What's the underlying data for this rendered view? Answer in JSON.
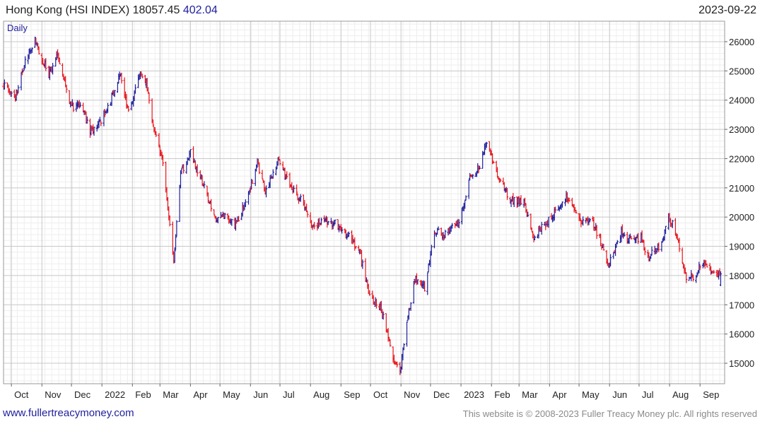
{
  "header": {
    "title_prefix": "Hong Kong (HSI INDEX) 18057.45",
    "change": "402.04",
    "date": "2023-09-22"
  },
  "footer": {
    "link": "www.fullertreacymoney.com",
    "copyright": "This website is © 2008-2023 Fuller Treacy Money plc. All rights reserved"
  },
  "colors": {
    "up": "#1f1f9e",
    "down": "#e8141c",
    "grid": "#dedede",
    "frame": "#999999"
  },
  "chart_data": {
    "type": "ohlc",
    "frequency_label": "Daily",
    "title": "Hong Kong (HSI INDEX) 18057.45 402.04",
    "y_ticks": [
      15000,
      16000,
      17000,
      18000,
      19000,
      20000,
      21000,
      22000,
      23000,
      24000,
      25000,
      26000
    ],
    "ylim": [
      14300,
      26700
    ],
    "x_ticks": [
      {
        "label": "Oct",
        "date": "2021-10"
      },
      {
        "label": "Nov",
        "date": "2021-11"
      },
      {
        "label": "Dec",
        "date": "2021-12"
      },
      {
        "label": "2022",
        "date": "2022-01"
      },
      {
        "label": "Feb",
        "date": "2022-02"
      },
      {
        "label": "Mar",
        "date": "2022-03"
      },
      {
        "label": "Apr",
        "date": "2022-04"
      },
      {
        "label": "May",
        "date": "2022-05"
      },
      {
        "label": "Jun",
        "date": "2022-06"
      },
      {
        "label": "Jul",
        "date": "2022-07"
      },
      {
        "label": "Aug",
        "date": "2022-08"
      },
      {
        "label": "Sep",
        "date": "2022-09"
      },
      {
        "label": "Oct",
        "date": "2022-10"
      },
      {
        "label": "Nov",
        "date": "2022-11"
      },
      {
        "label": "Dec",
        "date": "2022-12"
      },
      {
        "label": "2023",
        "date": "2023-01"
      },
      {
        "label": "Feb",
        "date": "2023-02"
      },
      {
        "label": "Mar",
        "date": "2023-03"
      },
      {
        "label": "Apr",
        "date": "2023-04"
      },
      {
        "label": "May",
        "date": "2023-05"
      },
      {
        "label": "Jun",
        "date": "2023-06"
      },
      {
        "label": "Jul",
        "date": "2023-07"
      },
      {
        "label": "Aug",
        "date": "2023-08"
      },
      {
        "label": "Sep",
        "date": "2023-09"
      }
    ],
    "grid": true,
    "close_path": [
      {
        "date": "2021-09-23",
        "close": 24500
      },
      {
        "date": "2021-10-05",
        "close": 24100
      },
      {
        "date": "2021-10-15",
        "close": 25300
      },
      {
        "date": "2021-10-25",
        "close": 26100
      },
      {
        "date": "2021-11-01",
        "close": 25400
      },
      {
        "date": "2021-11-08",
        "close": 24900
      },
      {
        "date": "2021-11-17",
        "close": 25650
      },
      {
        "date": "2021-11-26",
        "close": 24300
      },
      {
        "date": "2021-12-03",
        "close": 23700
      },
      {
        "date": "2021-12-10",
        "close": 23900
      },
      {
        "date": "2021-12-20",
        "close": 22900
      },
      {
        "date": "2021-12-31",
        "close": 23300
      },
      {
        "date": "2022-01-10",
        "close": 24000
      },
      {
        "date": "2022-01-20",
        "close": 24950
      },
      {
        "date": "2022-01-28",
        "close": 23550
      },
      {
        "date": "2022-02-08",
        "close": 24900
      },
      {
        "date": "2022-02-15",
        "close": 24650
      },
      {
        "date": "2022-02-24",
        "close": 22800
      },
      {
        "date": "2022-03-04",
        "close": 21900
      },
      {
        "date": "2022-03-15",
        "close": 18400
      },
      {
        "date": "2022-03-22",
        "close": 21500
      },
      {
        "date": "2022-04-01",
        "close": 22200
      },
      {
        "date": "2022-04-12",
        "close": 21300
      },
      {
        "date": "2022-04-26",
        "close": 19900
      },
      {
        "date": "2022-05-06",
        "close": 20000
      },
      {
        "date": "2022-05-16",
        "close": 19700
      },
      {
        "date": "2022-05-27",
        "close": 20500
      },
      {
        "date": "2022-06-08",
        "close": 21800
      },
      {
        "date": "2022-06-16",
        "close": 20900
      },
      {
        "date": "2022-06-30",
        "close": 22000
      },
      {
        "date": "2022-07-11",
        "close": 21000
      },
      {
        "date": "2022-07-22",
        "close": 20600
      },
      {
        "date": "2022-08-03",
        "close": 19750
      },
      {
        "date": "2022-08-15",
        "close": 19800
      },
      {
        "date": "2022-08-26",
        "close": 19800
      },
      {
        "date": "2022-09-09",
        "close": 19350
      },
      {
        "date": "2022-09-20",
        "close": 18800
      },
      {
        "date": "2022-09-30",
        "close": 17300
      },
      {
        "date": "2022-10-12",
        "close": 16850
      },
      {
        "date": "2022-10-24",
        "close": 15200
      },
      {
        "date": "2022-10-31",
        "close": 14700
      },
      {
        "date": "2022-11-08",
        "close": 16600
      },
      {
        "date": "2022-11-15",
        "close": 17900
      },
      {
        "date": "2022-11-25",
        "close": 17600
      },
      {
        "date": "2022-12-05",
        "close": 19500
      },
      {
        "date": "2022-12-15",
        "close": 19400
      },
      {
        "date": "2022-12-30",
        "close": 19800
      },
      {
        "date": "2023-01-10",
        "close": 21300
      },
      {
        "date": "2023-01-20",
        "close": 21700
      },
      {
        "date": "2023-01-27",
        "close": 22600
      },
      {
        "date": "2023-02-08",
        "close": 21300
      },
      {
        "date": "2023-02-20",
        "close": 20600
      },
      {
        "date": "2023-03-06",
        "close": 20500
      },
      {
        "date": "2023-03-15",
        "close": 19300
      },
      {
        "date": "2023-03-28",
        "close": 19800
      },
      {
        "date": "2023-04-10",
        "close": 20300
      },
      {
        "date": "2023-04-18",
        "close": 20700
      },
      {
        "date": "2023-05-02",
        "close": 19900
      },
      {
        "date": "2023-05-15",
        "close": 19800
      },
      {
        "date": "2023-05-24",
        "close": 19100
      },
      {
        "date": "2023-05-31",
        "close": 18300
      },
      {
        "date": "2023-06-13",
        "close": 19500
      },
      {
        "date": "2023-06-20",
        "close": 19200
      },
      {
        "date": "2023-07-03",
        "close": 19300
      },
      {
        "date": "2023-07-10",
        "close": 18600
      },
      {
        "date": "2023-07-24",
        "close": 19100
      },
      {
        "date": "2023-07-31",
        "close": 20100
      },
      {
        "date": "2023-08-10",
        "close": 19200
      },
      {
        "date": "2023-08-18",
        "close": 17900
      },
      {
        "date": "2023-08-25",
        "close": 17950
      },
      {
        "date": "2023-09-05",
        "close": 18500
      },
      {
        "date": "2023-09-14",
        "close": 18000
      },
      {
        "date": "2023-09-22",
        "close": 18057
      }
    ]
  }
}
